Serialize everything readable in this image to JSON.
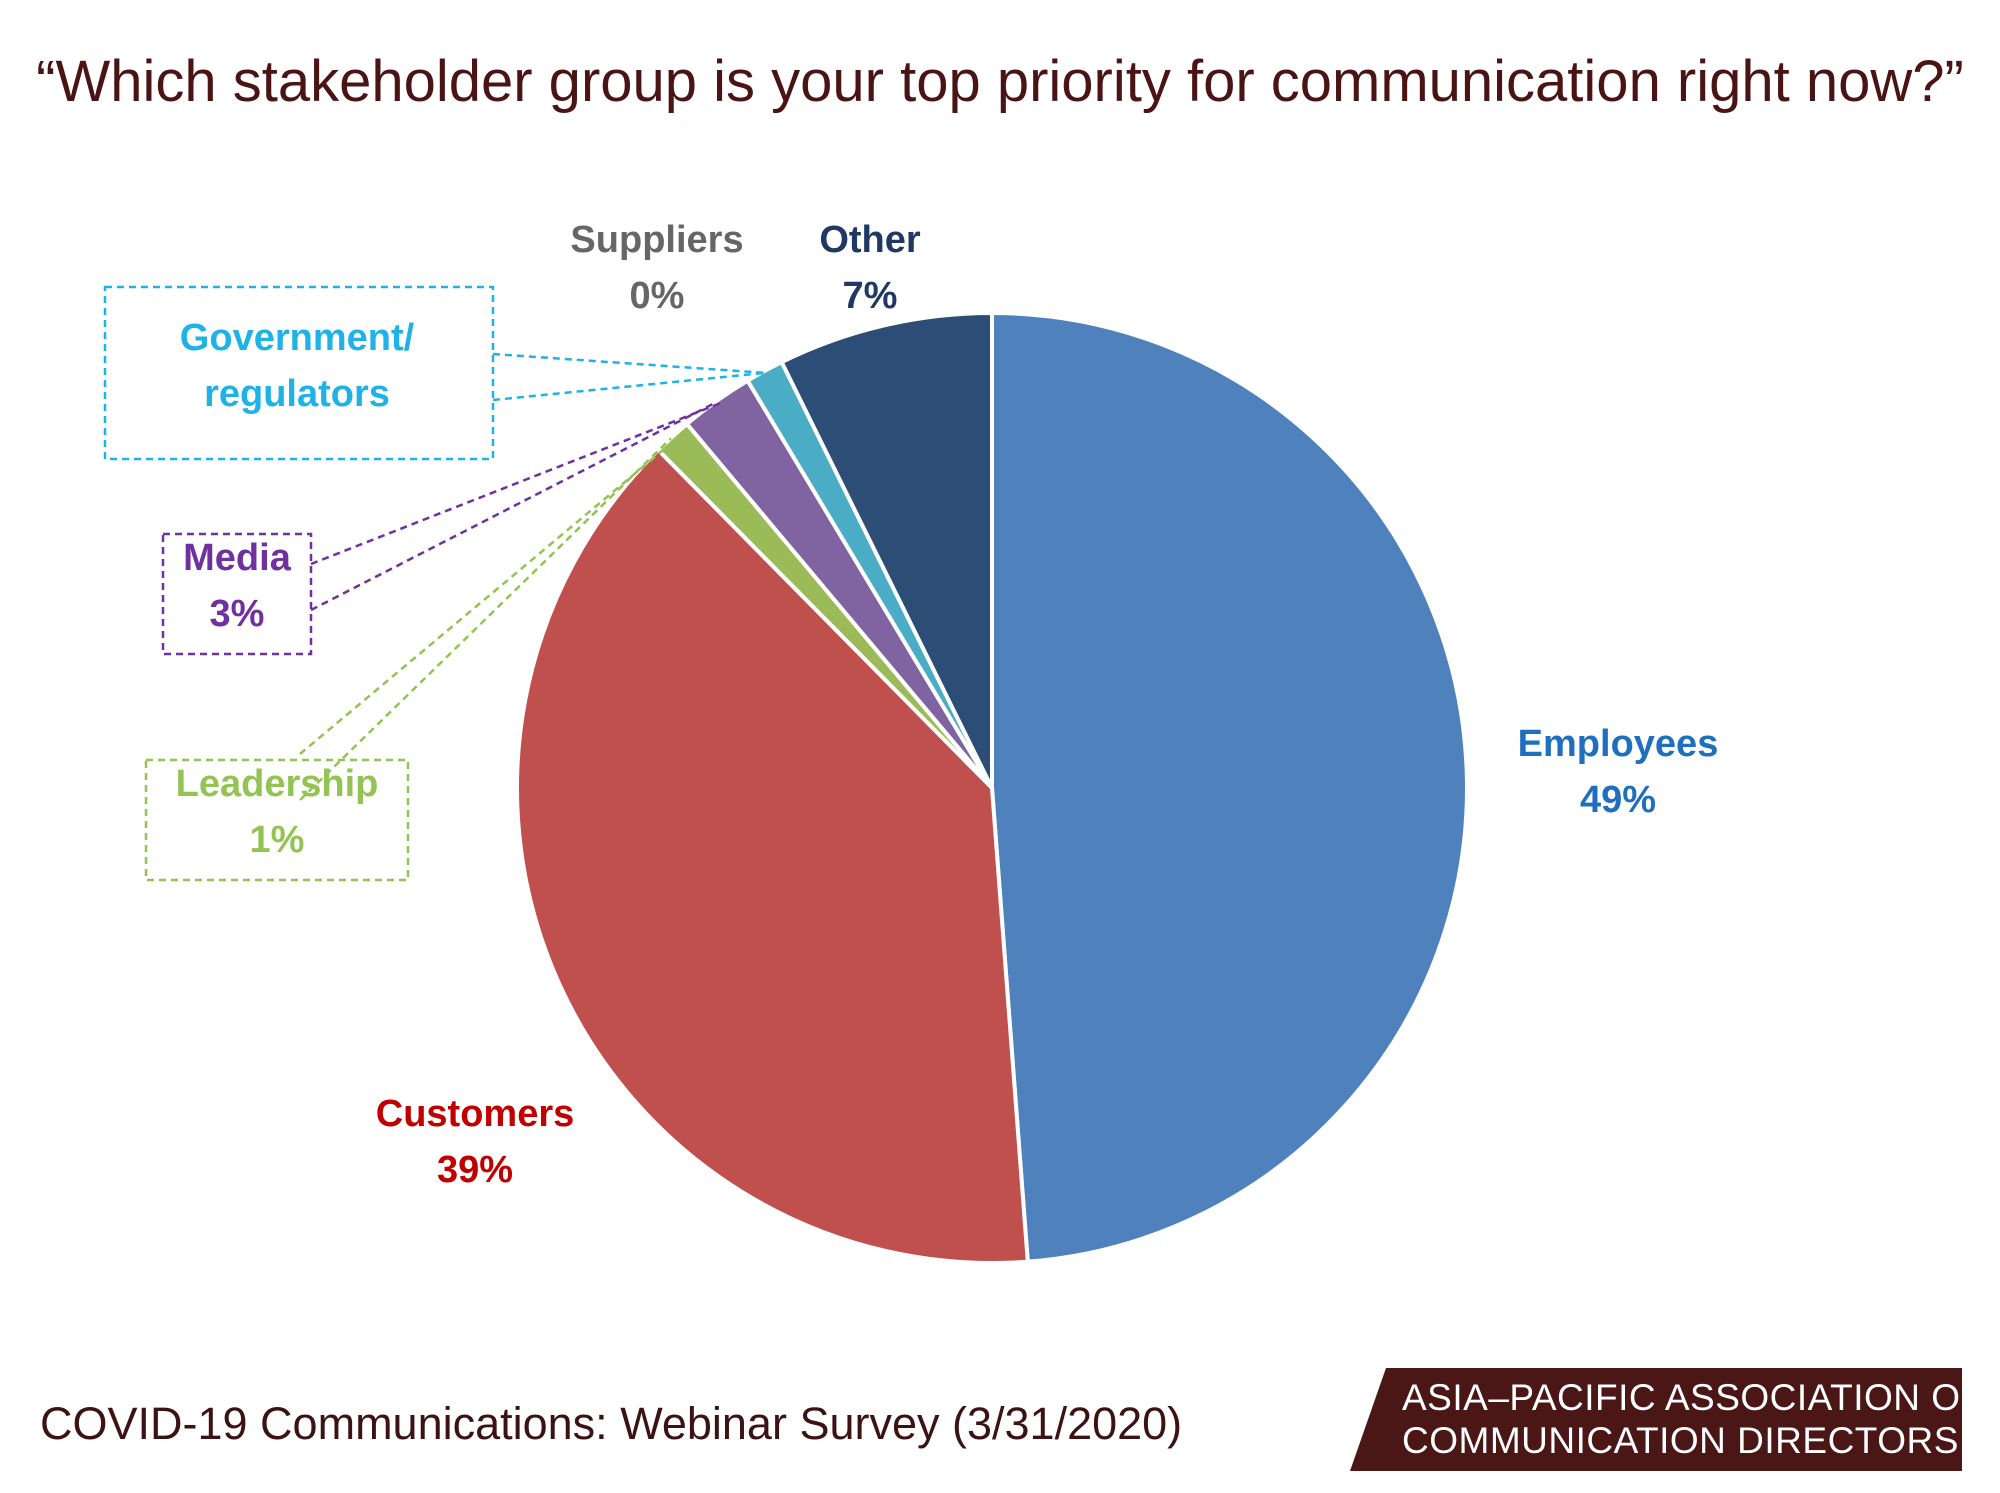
{
  "chart_data": {
    "type": "pie",
    "title": "“Which stakeholder group is your top priority for communication right now?”",
    "slices": [
      {
        "label": "Employees",
        "value_label": "49%",
        "value": 48.8,
        "color": "#4f81bd",
        "text_color": "#1f6fbf"
      },
      {
        "label": "Customers",
        "value_label": "39%",
        "value": 38.8,
        "color": "#c0504d",
        "text_color": "#c00000"
      },
      {
        "label": "Leadership",
        "value_label": "1%",
        "value": 1.3,
        "color": "#9bbb59",
        "text_color": "#92c353"
      },
      {
        "label": "Media",
        "value_label": "3%",
        "value": 2.5,
        "color": "#8064a2",
        "text_color": "#7030a0"
      },
      {
        "label": "Government/ regulators",
        "label_lines": [
          "Government/",
          "regulators"
        ],
        "value_label": "",
        "value": 1.3,
        "color": "#4bacc6",
        "text_color": "#1fb2e6"
      },
      {
        "label": "Suppliers",
        "value_label": "0%",
        "value": 0.0,
        "color": "#7f7f7f",
        "text_color": "#666666"
      },
      {
        "label": "Other",
        "value_label": "7%",
        "value": 7.3,
        "color": "#2c4d75",
        "text_color": "#1f3864"
      }
    ]
  },
  "footer": {
    "caption": "COVID-19 Communications: Webinar Survey (3/31/2020)",
    "org_line_1": "ASIA–PACIFIC ASSOCIATION OF",
    "org_line_2": "COMMUNICATION DIRECTORS"
  }
}
